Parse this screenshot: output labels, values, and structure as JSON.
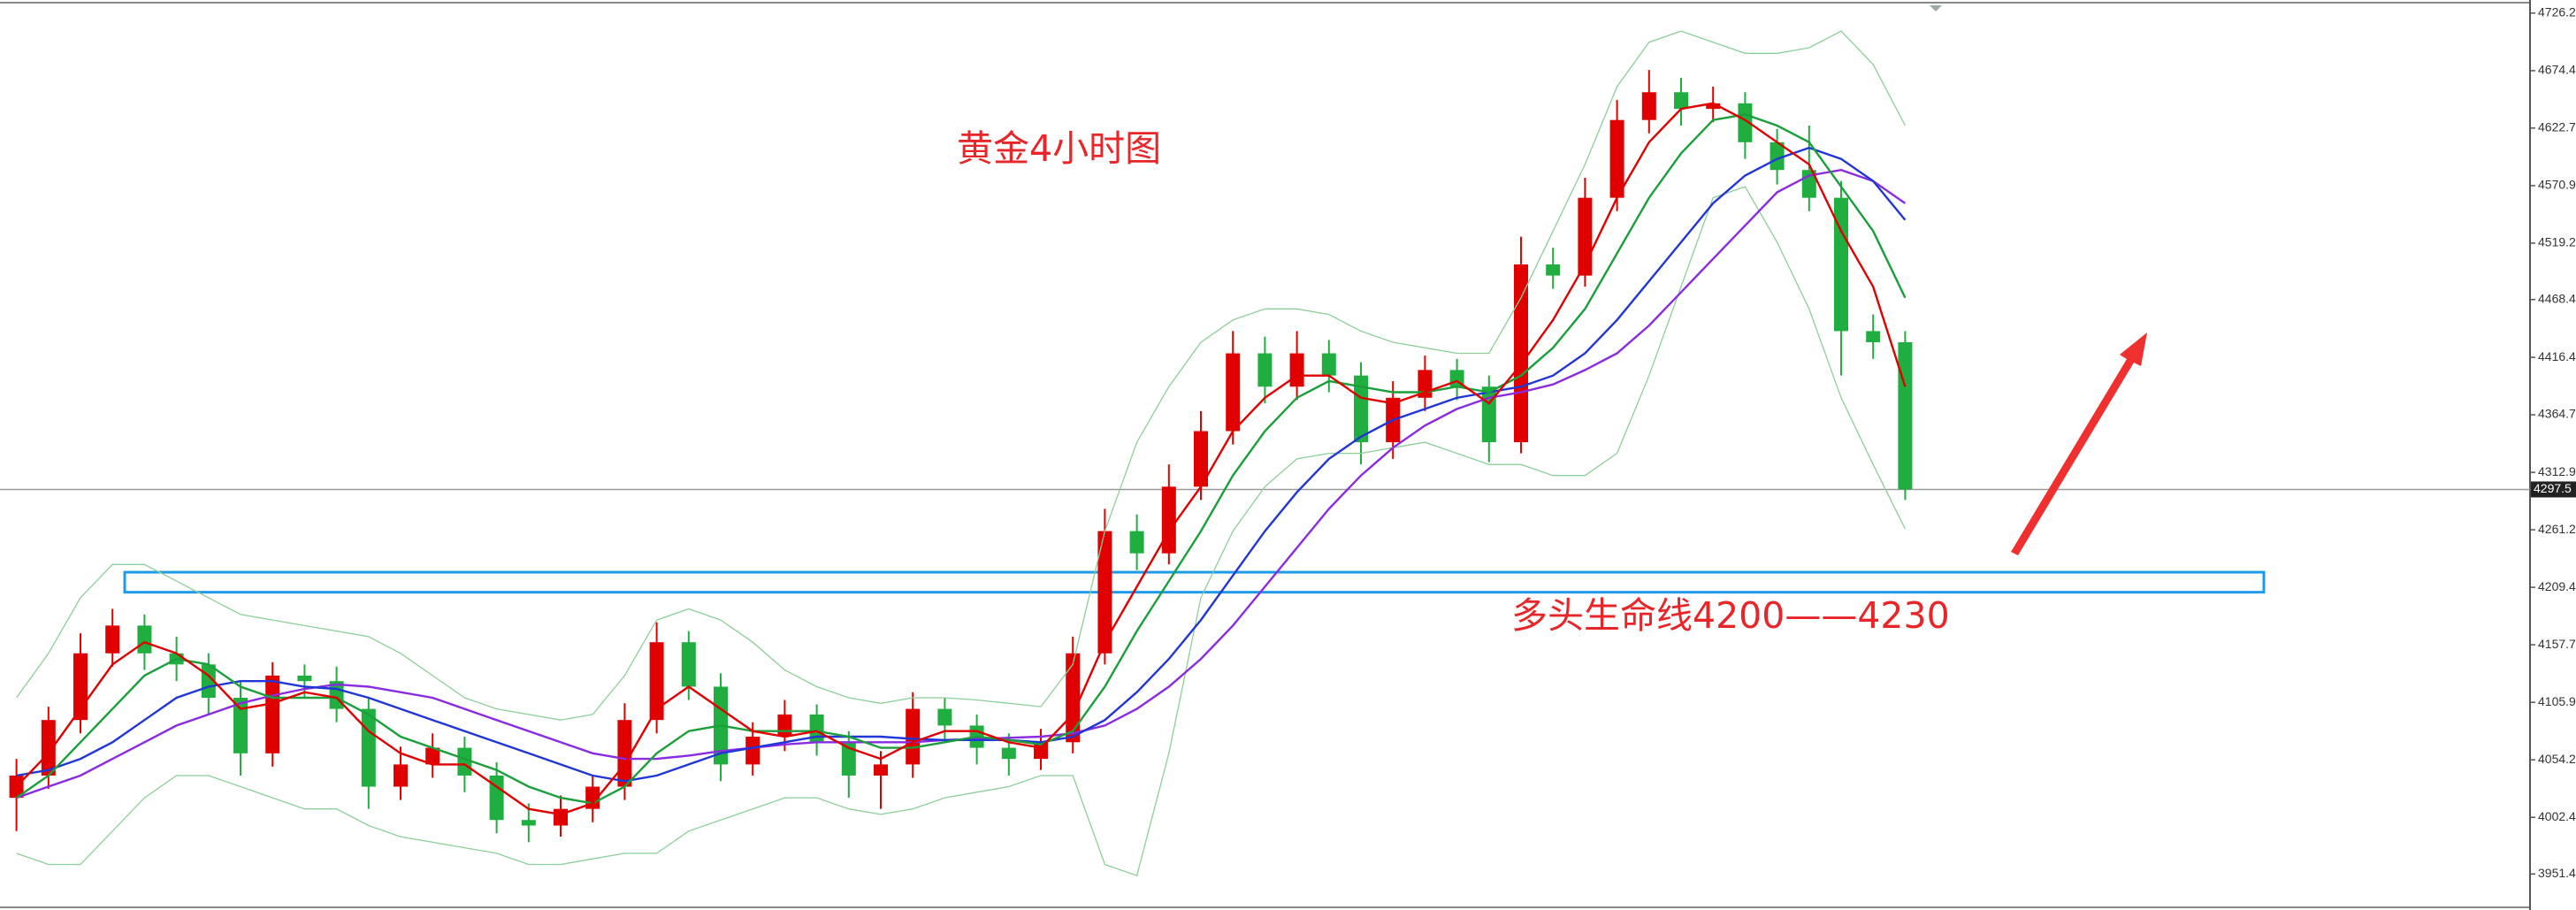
{
  "chart_data": {
    "type": "candlestick",
    "title": "黄金4小时图",
    "annotation": "多头生命线4200——4230",
    "ylim": [
      3919,
      4738
    ],
    "yticks": [
      4726.2,
      4674.4,
      4622.7,
      4570.9,
      4519.2,
      4468.4,
      4416.4,
      4364.7,
      4312.9,
      4261.2,
      4209.4,
      4157.7,
      4105.9,
      4054.2,
      4002.4,
      3951.4
    ],
    "up_color": "#e00000",
    "down_color": "#1fae3f",
    "candles": {
      "open": [
        4020,
        4040,
        4090,
        4150,
        4175,
        4150,
        4140,
        4110,
        4060,
        4130,
        4125,
        4100,
        4030,
        4050,
        4065,
        4040,
        4000,
        3995,
        4010,
        4030,
        4090,
        4160,
        4120,
        4050,
        4075,
        4095,
        4070,
        4040,
        4050,
        4100,
        4085,
        4065,
        4055,
        4070,
        4150,
        4260,
        4240,
        4300,
        4350,
        4420,
        4390,
        4420,
        4400,
        4340,
        4380,
        4405,
        4390,
        4340,
        4500,
        4490,
        4560,
        4630,
        4655,
        4640,
        4645,
        4610,
        4585,
        4560,
        4440,
        4430
      ],
      "high": [
        4055,
        4102,
        4168,
        4190,
        4185,
        4165,
        4150,
        4125,
        4142,
        4140,
        4138,
        4110,
        4066,
        4078,
        4075,
        4052,
        4015,
        4022,
        4040,
        4105,
        4178,
        4170,
        4132,
        4088,
        4108,
        4104,
        4080,
        4062,
        4115,
        4110,
        4095,
        4078,
        4082,
        4165,
        4280,
        4275,
        4320,
        4368,
        4440,
        4435,
        4440,
        4432,
        4412,
        4395,
        4418,
        4415,
        4400,
        4525,
        4515,
        4578,
        4648,
        4675,
        4668,
        4660,
        4655,
        4622,
        4625,
        4575,
        4455,
        4440
      ],
      "low": [
        3990,
        4028,
        4078,
        4138,
        4135,
        4125,
        4095,
        4040,
        4048,
        4110,
        4088,
        4010,
        4018,
        4038,
        4025,
        3988,
        3980,
        3985,
        3998,
        4018,
        4078,
        4108,
        4035,
        4040,
        4062,
        4058,
        4020,
        4010,
        4038,
        4070,
        4050,
        4040,
        4045,
        4060,
        4140,
        4225,
        4230,
        4288,
        4338,
        4375,
        4378,
        4385,
        4320,
        4325,
        4368,
        4378,
        4322,
        4330,
        4478,
        4480,
        4548,
        4618,
        4625,
        4628,
        4595,
        4572,
        4548,
        4400,
        4415,
        4288
      ],
      "close": [
        4040,
        4090,
        4150,
        4175,
        4150,
        4140,
        4110,
        4060,
        4130,
        4125,
        4100,
        4030,
        4050,
        4065,
        4040,
        4000,
        3995,
        4010,
        4030,
        4090,
        4160,
        4120,
        4050,
        4075,
        4095,
        4070,
        4040,
        4050,
        4100,
        4085,
        4065,
        4055,
        4070,
        4150,
        4260,
        4240,
        4300,
        4350,
        4420,
        4390,
        4420,
        4400,
        4340,
        4380,
        4405,
        4390,
        4340,
        4500,
        4490,
        4560,
        4630,
        4655,
        4640,
        4645,
        4610,
        4585,
        4560,
        4440,
        4430,
        4297.5
      ]
    },
    "lines": [
      {
        "color": "#8ccf98",
        "values": [
          4110,
          4150,
          4200,
          4230,
          4230,
          4215,
          4200,
          4185,
          4180,
          4175,
          4170,
          4165,
          4150,
          4130,
          4110,
          4100,
          4095,
          4090,
          4095,
          4130,
          4180,
          4190,
          4180,
          4160,
          4135,
          4120,
          4110,
          4105,
          4110,
          4110,
          4108,
          4105,
          4102,
          4140,
          4260,
          4340,
          4390,
          4430,
          4450,
          4460,
          4460,
          4455,
          4440,
          4430,
          4425,
          4420,
          4420,
          4470,
          4530,
          4590,
          4660,
          4700,
          4710,
          4700,
          4690,
          4690,
          4695,
          4710,
          4680,
          4625
        ]
      },
      {
        "color": "#8ccf98",
        "values": [
          3970,
          3960,
          3960,
          3990,
          4020,
          4040,
          4040,
          4030,
          4020,
          4010,
          4010,
          3995,
          3985,
          3980,
          3975,
          3970,
          3960,
          3960,
          3965,
          3970,
          3970,
          3990,
          4000,
          4010,
          4020,
          4020,
          4010,
          4005,
          4010,
          4020,
          4025,
          4030,
          4040,
          4040,
          3960,
          3950,
          4060,
          4200,
          4260,
          4300,
          4325,
          4330,
          4330,
          4335,
          4340,
          4330,
          4320,
          4320,
          4310,
          4310,
          4330,
          4400,
          4480,
          4560,
          4570,
          4520,
          4460,
          4380,
          4320,
          4262
        ]
      },
      {
        "color": "#8a2be2",
        "values": [
          4020,
          4030,
          4040,
          4055,
          4070,
          4085,
          4095,
          4105,
          4112,
          4118,
          4122,
          4120,
          4115,
          4110,
          4100,
          4090,
          4080,
          4070,
          4060,
          4055,
          4055,
          4058,
          4062,
          4065,
          4068,
          4070,
          4070,
          4070,
          4070,
          4072,
          4073,
          4074,
          4075,
          4078,
          4085,
          4100,
          4120,
          4145,
          4175,
          4210,
          4245,
          4280,
          4310,
          4335,
          4355,
          4370,
          4380,
          4385,
          4392,
          4405,
          4420,
          4445,
          4475,
          4505,
          4535,
          4565,
          4580,
          4585,
          4575,
          4555
        ]
      },
      {
        "color": "#2136d6",
        "values": [
          4040,
          4045,
          4055,
          4070,
          4090,
          4110,
          4120,
          4125,
          4125,
          4120,
          4118,
          4110,
          4100,
          4090,
          4080,
          4070,
          4060,
          4050,
          4040,
          4035,
          4040,
          4050,
          4060,
          4065,
          4070,
          4075,
          4075,
          4075,
          4073,
          4072,
          4072,
          4072,
          4070,
          4075,
          4090,
          4115,
          4145,
          4180,
          4220,
          4260,
          4295,
          4325,
          4345,
          4360,
          4370,
          4380,
          4385,
          4390,
          4400,
          4420,
          4450,
          4485,
          4520,
          4555,
          4580,
          4595,
          4605,
          4595,
          4575,
          4540
        ]
      },
      {
        "color": "#1a9f3a",
        "values": [
          4020,
          4040,
          4070,
          4100,
          4130,
          4145,
          4140,
          4120,
          4110,
          4110,
          4110,
          4095,
          4075,
          4065,
          4055,
          4045,
          4030,
          4020,
          4015,
          4030,
          4060,
          4080,
          4085,
          4080,
          4080,
          4080,
          4075,
          4065,
          4065,
          4070,
          4075,
          4072,
          4068,
          4080,
          4120,
          4170,
          4215,
          4260,
          4310,
          4350,
          4380,
          4395,
          4390,
          4385,
          4385,
          4390,
          4385,
          4400,
          4425,
          4460,
          4510,
          4560,
          4600,
          4630,
          4635,
          4625,
          4610,
          4570,
          4530,
          4470
        ]
      },
      {
        "color": "#e00000",
        "values": [
          4030,
          4060,
          4100,
          4140,
          4160,
          4150,
          4130,
          4100,
          4105,
          4115,
          4110,
          4080,
          4060,
          4050,
          4050,
          4030,
          4010,
          4005,
          4015,
          4050,
          4100,
          4120,
          4100,
          4080,
          4075,
          4080,
          4065,
          4055,
          4070,
          4080,
          4080,
          4070,
          4065,
          4095,
          4160,
          4210,
          4260,
          4300,
          4350,
          4380,
          4400,
          4400,
          4380,
          4375,
          4385,
          4395,
          4375,
          4410,
          4450,
          4500,
          4560,
          4610,
          4640,
          4645,
          4630,
          4610,
          4590,
          4530,
          4480,
          4390
        ]
      }
    ],
    "zone": {
      "low": 4205,
      "high": 4223,
      "color": "#1e9be8"
    },
    "last_price": 4297.5
  }
}
